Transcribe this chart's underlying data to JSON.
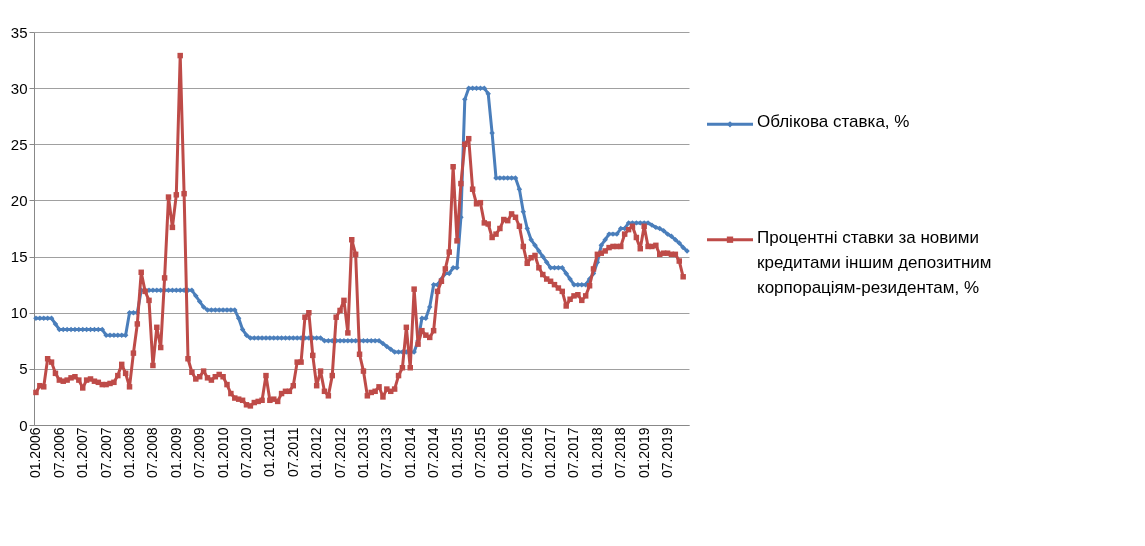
{
  "chart_data": {
    "type": "line",
    "categories": [
      "01.2006",
      null,
      null,
      null,
      null,
      null,
      "07.2006",
      null,
      null,
      null,
      null,
      null,
      "01.2007",
      null,
      null,
      null,
      null,
      null,
      "07.2007",
      null,
      null,
      null,
      null,
      null,
      "01.2008",
      null,
      null,
      null,
      null,
      null,
      "07.2008",
      null,
      null,
      null,
      null,
      null,
      "01.2009",
      null,
      null,
      null,
      null,
      null,
      "07.2009",
      null,
      null,
      null,
      null,
      null,
      "01.2010",
      null,
      null,
      null,
      null,
      null,
      "07.2010",
      null,
      null,
      null,
      null,
      null,
      "01.2011",
      null,
      null,
      null,
      null,
      null,
      "07.2011",
      null,
      null,
      null,
      null,
      null,
      "01.2012",
      null,
      null,
      null,
      null,
      null,
      "07.2012",
      null,
      null,
      null,
      null,
      null,
      "01.2013",
      null,
      null,
      null,
      null,
      null,
      "07.2013",
      null,
      null,
      null,
      null,
      null,
      "01.2014",
      null,
      null,
      null,
      null,
      null,
      "07.2014",
      null,
      null,
      null,
      null,
      null,
      "01.2015",
      null,
      null,
      null,
      null,
      null,
      "07.2015",
      null,
      null,
      null,
      null,
      null,
      "01.2016",
      null,
      null,
      null,
      null,
      null,
      "07.2016",
      null,
      null,
      null,
      null,
      null,
      "01.2017",
      null,
      null,
      null,
      null,
      null,
      "07.2017",
      null,
      null,
      null,
      null,
      null,
      "01.2018",
      null,
      null,
      null,
      null,
      null,
      "07.2018",
      null,
      null,
      null,
      null,
      null,
      "01.2019",
      null,
      null,
      null,
      null,
      null,
      "07.2019",
      null,
      null,
      null,
      null,
      null
    ],
    "series": [
      {
        "name": "Облікова ставка, %",
        "color": "#4a7ebb",
        "marker": "diamond",
        "values": [
          9.5,
          9.5,
          9.5,
          9.5,
          9.5,
          9.0,
          8.5,
          8.5,
          8.5,
          8.5,
          8.5,
          8.5,
          8.5,
          8.5,
          8.5,
          8.5,
          8.5,
          8.5,
          8.0,
          8.0,
          8.0,
          8.0,
          8.0,
          8.0,
          10,
          10,
          10,
          12,
          12,
          12,
          12,
          12,
          12,
          12,
          12,
          12,
          12,
          12,
          12,
          12,
          12,
          11.5,
          11,
          10.5,
          10.25,
          10.25,
          10.25,
          10.25,
          10.25,
          10.25,
          10.25,
          10.25,
          9.5,
          8.5,
          8.0,
          7.75,
          7.75,
          7.75,
          7.75,
          7.75,
          7.75,
          7.75,
          7.75,
          7.75,
          7.75,
          7.75,
          7.75,
          7.75,
          7.75,
          7.75,
          7.75,
          7.75,
          7.75,
          7.75,
          7.5,
          7.5,
          7.5,
          7.5,
          7.5,
          7.5,
          7.5,
          7.5,
          7.5,
          7.5,
          7.5,
          7.5,
          7.5,
          7.5,
          7.5,
          7.25,
          7.0,
          6.75,
          6.5,
          6.5,
          6.5,
          6.5,
          6.5,
          6.5,
          7.5,
          9.5,
          9.5,
          10.5,
          12.5,
          12.5,
          13,
          13.5,
          13.5,
          14,
          14,
          18.5,
          29,
          30,
          30,
          30,
          30,
          30,
          29.5,
          26,
          22,
          22,
          22,
          22,
          22,
          22,
          21,
          19,
          17.5,
          16.5,
          16,
          15.5,
          15,
          14.5,
          14,
          14,
          14,
          14,
          13.5,
          13,
          12.5,
          12.5,
          12.5,
          12.5,
          13,
          13.5,
          14.5,
          16,
          16.5,
          17,
          17,
          17,
          17.5,
          17.5,
          18,
          18,
          18,
          18,
          18,
          18,
          17.8,
          17.6,
          17.5,
          17.3,
          17,
          16.8,
          16.5,
          16.2,
          15.8,
          15.5
        ]
      },
      {
        "name": "Процентні ставки за новими кредитами іншим депозитним корпораціям-резидентам, %",
        "color": "#be4b48",
        "marker": "square",
        "values": [
          2.9,
          3.5,
          3.4,
          5.9,
          5.6,
          4.6,
          4.0,
          3.9,
          4.0,
          4.2,
          4.3,
          4.0,
          3.3,
          4.0,
          4.1,
          3.9,
          3.8,
          3.6,
          3.6,
          3.7,
          3.8,
          4.4,
          5.4,
          4.6,
          3.4,
          6.4,
          9.0,
          13.6,
          11.9,
          11.1,
          5.3,
          8.7,
          6.9,
          13.1,
          20.3,
          17.6,
          20.5,
          32.9,
          20.6,
          5.9,
          4.7,
          4.1,
          4.3,
          4.8,
          4.2,
          4.0,
          4.3,
          4.5,
          4.3,
          3.6,
          2.8,
          2.4,
          2.3,
          2.2,
          1.8,
          1.7,
          2.0,
          2.1,
          2.2,
          4.4,
          2.2,
          2.3,
          2.1,
          2.8,
          3.0,
          3.0,
          3.5,
          5.6,
          5.6,
          9.6,
          10.0,
          6.2,
          3.5,
          4.8,
          3.0,
          2.6,
          4.4,
          9.6,
          10.2,
          11.1,
          8.2,
          16.5,
          15.2,
          6.3,
          4.8,
          2.6,
          2.9,
          3.0,
          3.4,
          2.5,
          3.2,
          3.0,
          3.2,
          4.4,
          5.1,
          8.7,
          5.1,
          12.1,
          7.2,
          8.4,
          8.0,
          7.8,
          8.4,
          11.9,
          12.8,
          13.9,
          15.4,
          23.0,
          16.4,
          21.5,
          25.0,
          25.5,
          21.0,
          19.7,
          19.8,
          18.0,
          17.9,
          16.7,
          17.0,
          17.5,
          18.3,
          18.2,
          18.8,
          18.5,
          17.7,
          15.9,
          14.4,
          14.9,
          15.1,
          14.0,
          13.4,
          13.0,
          12.8,
          12.5,
          12.2,
          11.9,
          10.6,
          11.2,
          11.5,
          11.6,
          11.1,
          11.5,
          12.4,
          13.9,
          15.2,
          15.3,
          15.5,
          15.8,
          15.9,
          15.9,
          15.9,
          17.0,
          17.4,
          17.7,
          16.7,
          15.7,
          17.7,
          15.9,
          15.9,
          16.0,
          15.2,
          15.3,
          15.3,
          15.2,
          15.2,
          14.6,
          13.2,
          null
        ]
      }
    ],
    "ylim": [
      0,
      35
    ],
    "yticks": [
      0,
      5,
      10,
      15,
      20,
      25,
      30,
      35
    ],
    "grid": "y",
    "legend": "right",
    "line_style": "solid"
  }
}
